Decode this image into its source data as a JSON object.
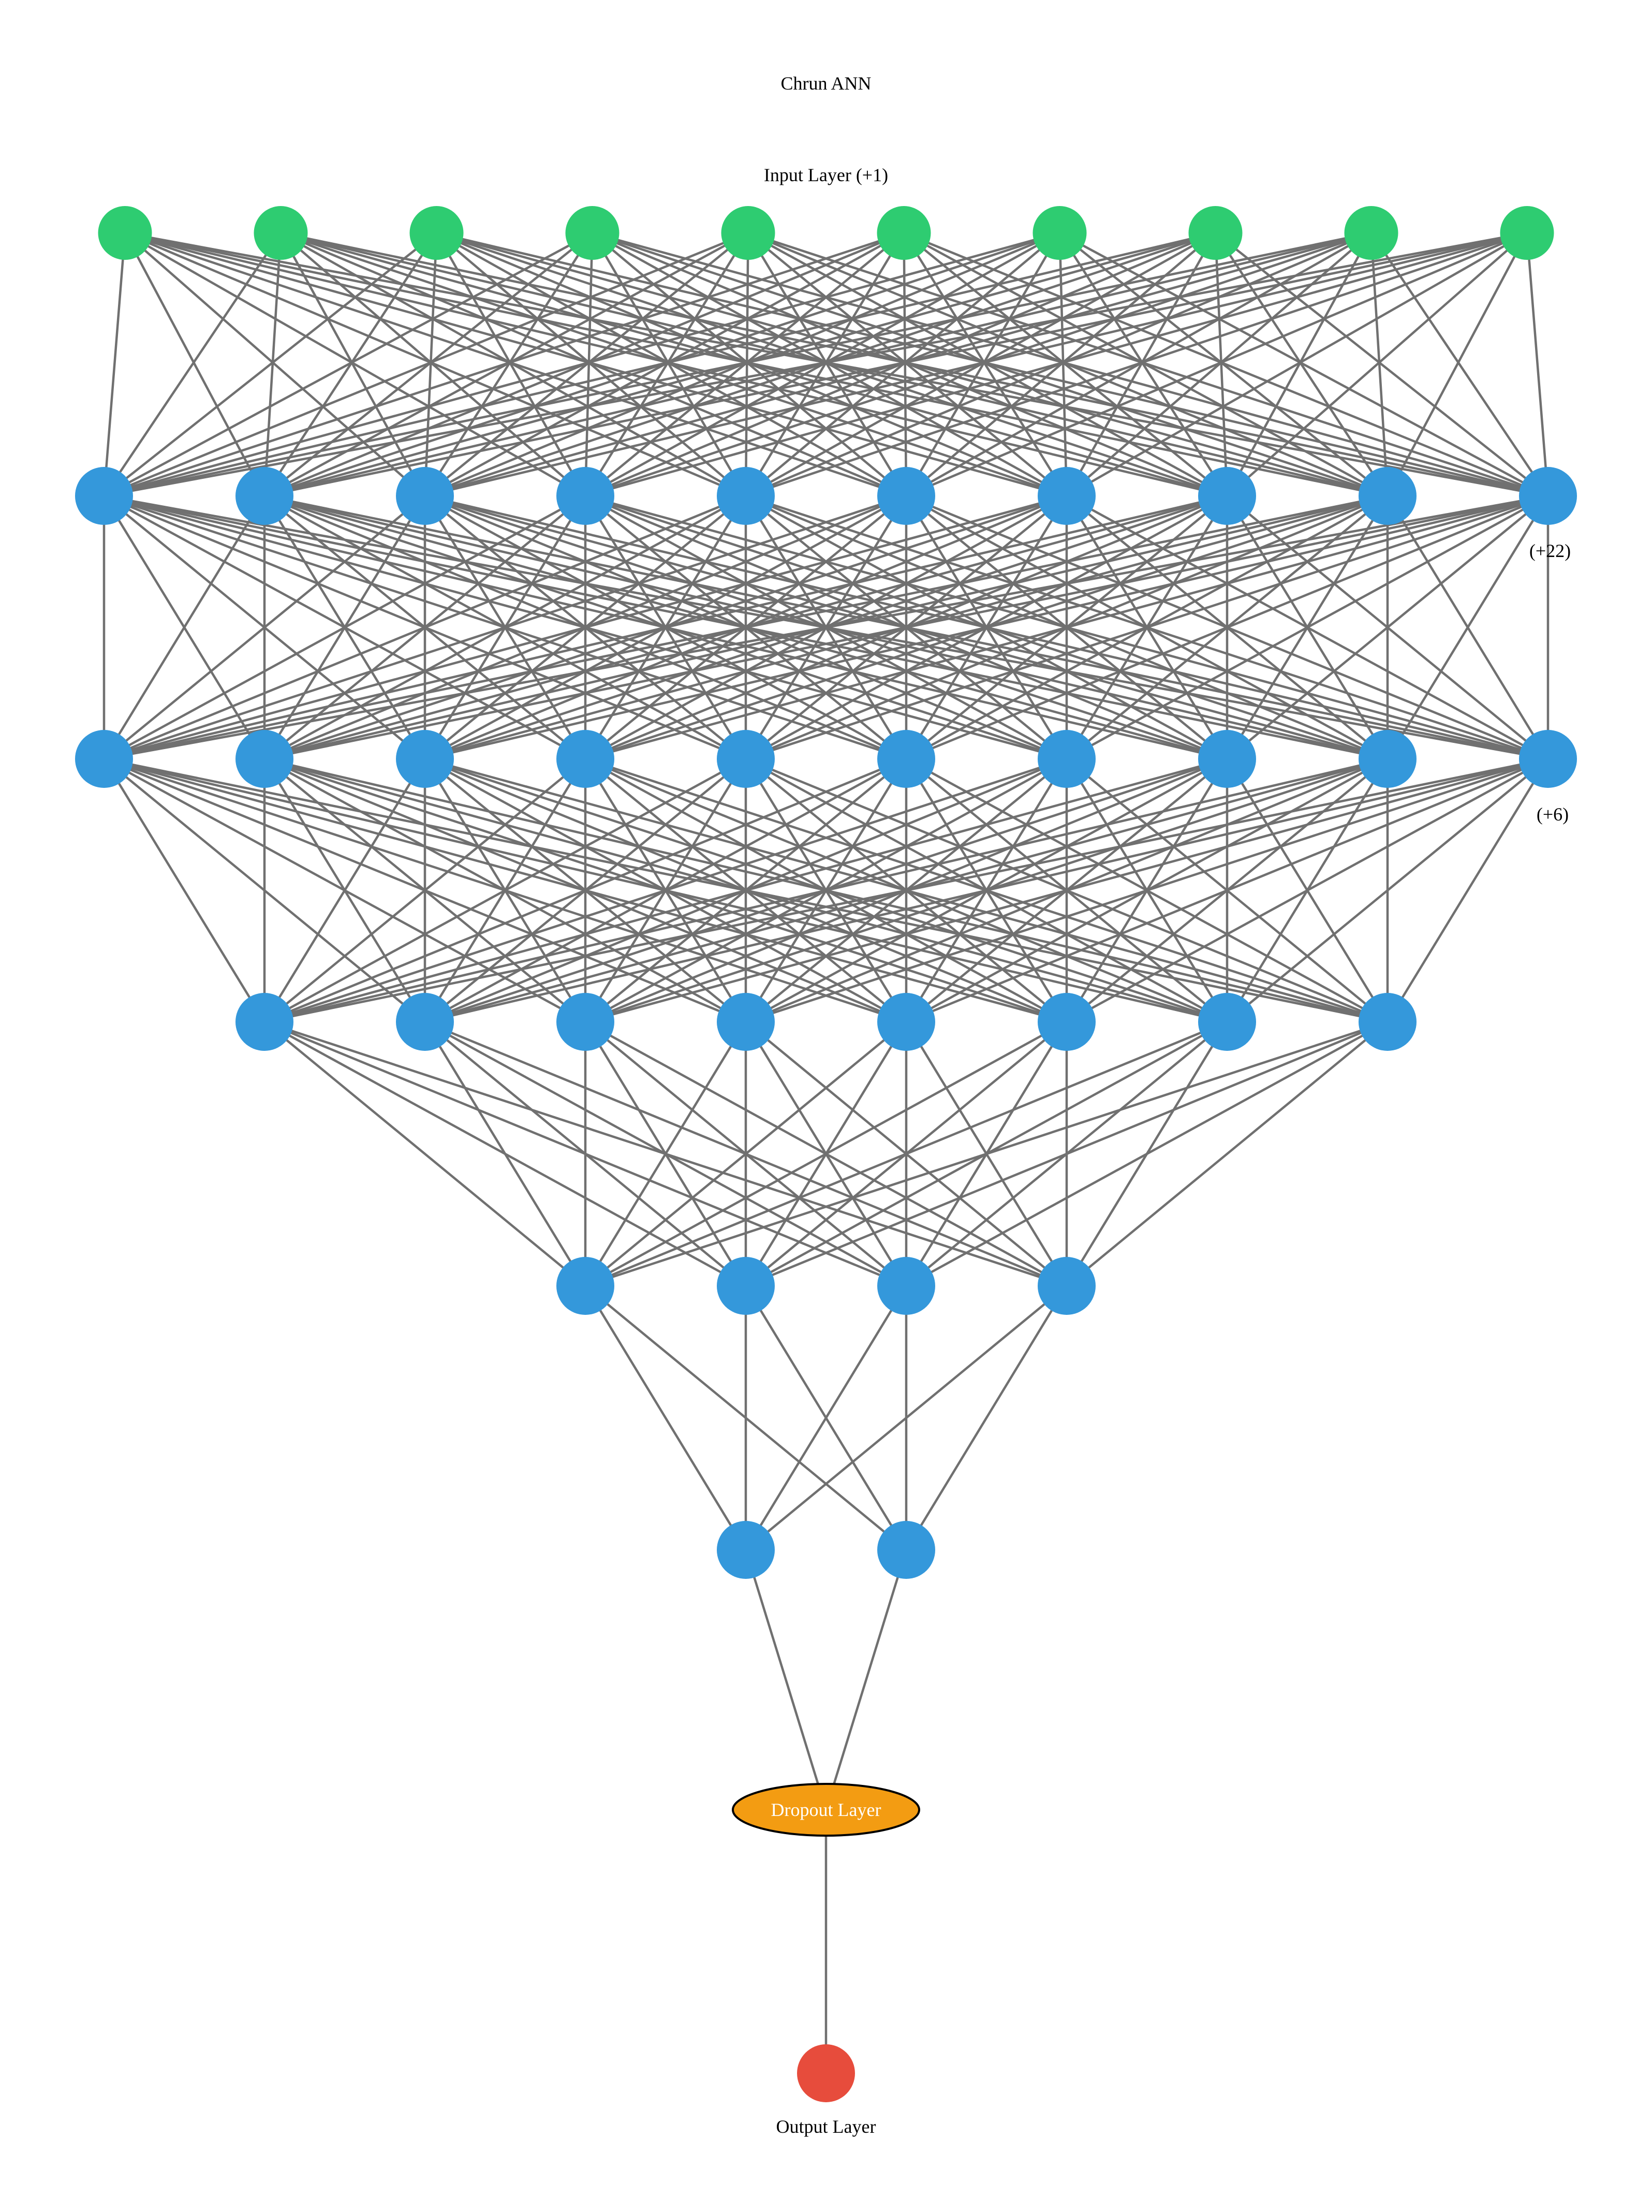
{
  "diagram": {
    "title": "Chrun ANN",
    "input_label": "Input Layer (+1)",
    "output_label": "Output Layer",
    "dropout_label": "Dropout Layer",
    "colors": {
      "input": "#2ecc71",
      "hidden": "#3498db",
      "dropout": "#f39c12",
      "output": "#e74c3c",
      "edge": "#707070"
    },
    "layers": [
      {
        "role": "input",
        "drawn_nodes": 10,
        "extra_label": ""
      },
      {
        "role": "hidden",
        "drawn_nodes": 10,
        "extra_label": "(+22)"
      },
      {
        "role": "hidden",
        "drawn_nodes": 10,
        "extra_label": "(+6)"
      },
      {
        "role": "hidden",
        "drawn_nodes": 8,
        "extra_label": ""
      },
      {
        "role": "hidden",
        "drawn_nodes": 4,
        "extra_label": ""
      },
      {
        "role": "hidden",
        "drawn_nodes": 2,
        "extra_label": ""
      },
      {
        "role": "dropout",
        "drawn_nodes": 1,
        "extra_label": ""
      },
      {
        "role": "output",
        "drawn_nodes": 1,
        "extra_label": ""
      }
    ]
  }
}
